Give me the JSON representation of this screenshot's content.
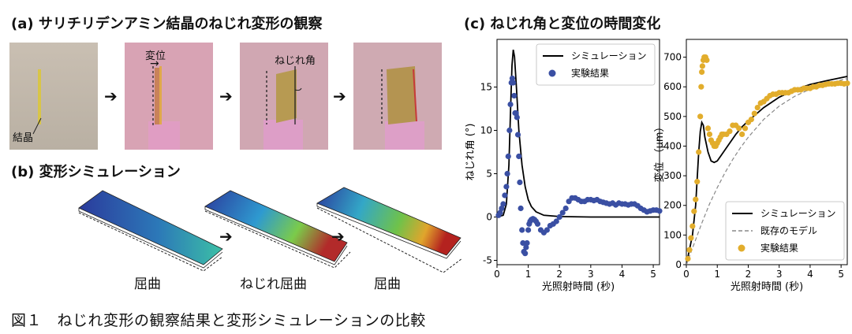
{
  "panel_a": {
    "title": "(a) サリチリデンアミン結晶のねじれ変形の観察",
    "labels": {
      "crystal": "結晶",
      "displacement": "変位",
      "twist_angle": "ねじれ角"
    }
  },
  "panel_b": {
    "title": "(b) 変形シミュレーション",
    "labels": {
      "bend1": "屈曲",
      "twist_bend": "ねじれ屈曲",
      "bend2": "屈曲"
    }
  },
  "panel_c": {
    "title": "(c) ねじれ角と変位の時間変化"
  },
  "caption": "図１　ねじれ変形の観察結果と変形シミュレーションの比較",
  "arrow_glyph": "➔",
  "chart_data": [
    {
      "type": "line",
      "xlabel": "光照射時間 (秒)",
      "ylabel": "ねじれ角 (°)",
      "xlim": [
        0,
        5.2
      ],
      "ylim": [
        -5.5,
        20.5
      ],
      "xticks": [
        0,
        1,
        2,
        3,
        4,
        5
      ],
      "yticks": [
        -5,
        0,
        5,
        10,
        15
      ],
      "legend_position": "top-right",
      "series": [
        {
          "name": "シミュレーション",
          "style": "line",
          "color": "#000000",
          "x": [
            0,
            0.2,
            0.3,
            0.38,
            0.44,
            0.48,
            0.52,
            0.56,
            0.62,
            0.7,
            0.8,
            0.9,
            1.0,
            1.1,
            1.25,
            1.5,
            2.0,
            3.0,
            4.0,
            5.2
          ],
          "y": [
            0,
            0.2,
            1.5,
            6,
            13,
            17.5,
            19.3,
            18.5,
            15,
            10,
            6,
            3.5,
            2,
            1.2,
            0.6,
            0.2,
            0.05,
            0,
            0,
            0
          ]
        },
        {
          "name": "実験結果",
          "style": "scatter",
          "color": "#3a4fa3",
          "x": [
            0.05,
            0.1,
            0.15,
            0.2,
            0.25,
            0.3,
            0.33,
            0.36,
            0.4,
            0.43,
            0.46,
            0.49,
            0.52,
            0.55,
            0.58,
            0.61,
            0.64,
            0.67,
            0.7,
            0.73,
            0.76,
            0.8,
            0.83,
            0.86,
            0.9,
            0.93,
            0.96,
            1.0,
            1.03,
            1.06,
            1.1,
            1.15,
            1.2,
            1.25,
            1.3,
            1.4,
            1.5,
            1.6,
            1.7,
            1.8,
            1.9,
            2.0,
            2.1,
            2.2,
            2.3,
            2.4,
            2.5,
            2.6,
            2.7,
            2.8,
            2.9,
            3.0,
            3.1,
            3.2,
            3.3,
            3.4,
            3.5,
            3.6,
            3.7,
            3.8,
            3.9,
            4.0,
            4.1,
            4.2,
            4.3,
            4.4,
            4.5,
            4.6,
            4.7,
            4.8,
            4.9,
            5.0,
            5.1,
            5.2
          ],
          "y": [
            0.2,
            0.5,
            1.0,
            1.5,
            2.5,
            3.5,
            5.0,
            7.0,
            10.0,
            13.0,
            15.5,
            16.0,
            15.5,
            14.0,
            12.0,
            12.0,
            11.5,
            9.5,
            7.0,
            4.0,
            1.0,
            -1.5,
            -3.0,
            -4.0,
            -4.2,
            -3.5,
            -3.0,
            -1.5,
            -0.8,
            -0.5,
            -0.3,
            -0.2,
            -0.3,
            -0.5,
            -0.8,
            -1.5,
            -1.8,
            -1.5,
            -1.0,
            -0.8,
            -0.5,
            0.0,
            0.5,
            1.0,
            1.8,
            2.2,
            2.2,
            2.0,
            1.8,
            1.8,
            2.0,
            2.0,
            1.9,
            2.0,
            1.8,
            1.7,
            1.6,
            1.5,
            1.6,
            1.4,
            1.6,
            1.5,
            1.5,
            1.4,
            1.5,
            1.5,
            1.3,
            1.0,
            0.8,
            0.6,
            0.7,
            0.8,
            0.8,
            0.7
          ]
        }
      ]
    },
    {
      "type": "line",
      "xlabel": "光照射時間 (秒)",
      "ylabel": "変位 （μm）",
      "xlim": [
        0,
        5.2
      ],
      "ylim": [
        0,
        760
      ],
      "xticks": [
        0,
        1,
        2,
        3,
        4,
        5
      ],
      "yticks": [
        0,
        100,
        200,
        300,
        400,
        500,
        600,
        700
      ],
      "legend_position": "bottom-right",
      "series": [
        {
          "name": "シミュレーション",
          "style": "line",
          "color": "#000000",
          "x": [
            0,
            0.1,
            0.2,
            0.3,
            0.4,
            0.45,
            0.5,
            0.55,
            0.6,
            0.7,
            0.8,
            0.9,
            1.0,
            1.1,
            1.2,
            1.4,
            1.6,
            1.8,
            2.0,
            2.5,
            3.0,
            3.5,
            4.0,
            4.5,
            5.2
          ],
          "y": [
            0,
            50,
            100,
            200,
            380,
            450,
            480,
            470,
            430,
            380,
            350,
            345,
            350,
            365,
            380,
            410,
            440,
            465,
            485,
            530,
            565,
            590,
            608,
            620,
            635
          ]
        },
        {
          "name": "既存のモデル",
          "style": "dashed",
          "color": "#888888",
          "x": [
            0,
            0.25,
            0.5,
            0.75,
            1.0,
            1.25,
            1.5,
            1.75,
            2.0,
            2.5,
            3.0,
            3.5,
            4.0,
            4.5,
            5.2
          ],
          "y": [
            0,
            70,
            140,
            205,
            260,
            310,
            355,
            395,
            430,
            490,
            535,
            568,
            592,
            610,
            628
          ]
        },
        {
          "name": "実験結果",
          "style": "scatter",
          "color": "#e2ad2c",
          "x": [
            0.05,
            0.1,
            0.15,
            0.2,
            0.25,
            0.3,
            0.35,
            0.4,
            0.45,
            0.48,
            0.5,
            0.52,
            0.55,
            0.58,
            0.62,
            0.66,
            0.7,
            0.75,
            0.8,
            0.85,
            0.9,
            0.95,
            1.0,
            1.05,
            1.1,
            1.15,
            1.2,
            1.3,
            1.4,
            1.5,
            1.6,
            1.7,
            1.8,
            1.9,
            2.0,
            2.1,
            2.2,
            2.3,
            2.4,
            2.5,
            2.6,
            2.7,
            2.8,
            2.9,
            3.0,
            3.1,
            3.2,
            3.3,
            3.4,
            3.5,
            3.6,
            3.7,
            3.8,
            3.9,
            4.0,
            4.1,
            4.2,
            4.3,
            4.4,
            4.5,
            4.6,
            4.7,
            4.8,
            4.9,
            5.0,
            5.1,
            5.2
          ],
          "y": [
            20,
            50,
            90,
            130,
            180,
            220,
            280,
            380,
            500,
            600,
            650,
            670,
            690,
            700,
            700,
            690,
            460,
            440,
            420,
            410,
            400,
            400,
            410,
            420,
            430,
            440,
            440,
            440,
            450,
            470,
            470,
            460,
            440,
            460,
            480,
            490,
            510,
            530,
            545,
            550,
            560,
            570,
            575,
            575,
            580,
            580,
            580,
            580,
            585,
            590,
            590,
            590,
            595,
            595,
            595,
            600,
            600,
            605,
            605,
            608,
            610,
            610,
            610,
            612,
            612,
            610,
            612
          ]
        }
      ]
    }
  ]
}
